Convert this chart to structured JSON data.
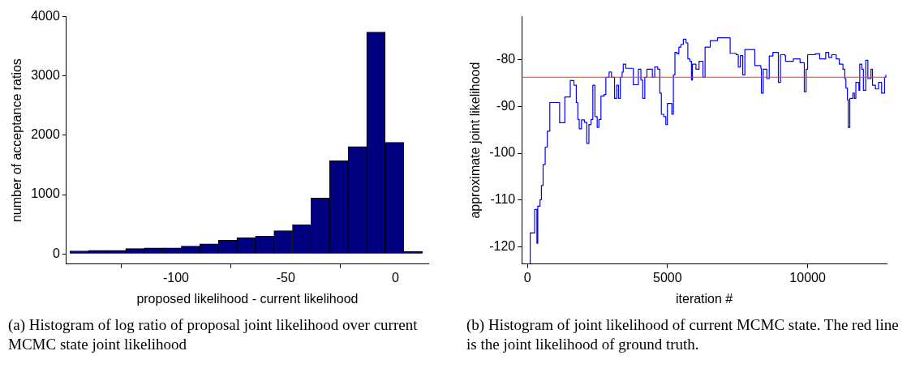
{
  "chart_data": [
    {
      "type": "histogram",
      "xlabel": "proposed likelihood - current likelihood",
      "ylabel": "number of acceptance ratios",
      "annotations": [
        "(a) Histogram of log ratio of proposal joint likelihood over current MCMC state joint likelihood"
      ],
      "bins": [
        -148.3,
        -139.9,
        -131.4,
        -123,
        -114.5,
        -106.1,
        -97.6,
        -89.2,
        -80.7,
        -72.3,
        -63.8,
        -55.4,
        -46.9,
        -38.5,
        -30,
        -21.6,
        -13.1,
        -4.7,
        3.8,
        12.3
      ],
      "values": [
        50,
        60,
        60,
        90,
        100,
        100,
        130,
        170,
        230,
        270,
        300,
        390,
        490,
        940,
        1570,
        1810,
        3740,
        1880,
        40
      ],
      "color": "#000080",
      "xlim": [
        -150,
        15
      ],
      "ylim": [
        -170,
        4000
      ],
      "xticks": [
        -100,
        -50,
        0
      ],
      "yticks": [
        0,
        1000,
        2000,
        3000,
        4000
      ],
      "grid": false
    },
    {
      "type": "step",
      "xlabel": "iteration #",
      "ylabel": "approximate joint likelihood",
      "annotations": [
        "(b) Histogram of joint likelihood of current MCMC state. The red line is the joint likelihood of ground truth."
      ],
      "xlim": [
        -200,
        12820
      ],
      "ylim": [
        -123.6,
        -70.9
      ],
      "xticks": [
        0,
        5000,
        10000
      ],
      "yticks": [
        -120,
        -110,
        -100,
        -90,
        -80
      ],
      "grid": false,
      "ref_lines": [
        {
          "axis": "y",
          "value": -83.8,
          "color": "#ff3030"
        }
      ],
      "series": [
        {
          "color": "#0000ff",
          "x": [
            0,
            100,
            260,
            260,
            340,
            370,
            450,
            500,
            560,
            635,
            710,
            800,
            1150,
            1150,
            1280,
            1335,
            1475,
            1530,
            1660,
            1745,
            1800,
            1850,
            1930,
            2035,
            2120,
            2195,
            2270,
            2335,
            2410,
            2490,
            2550,
            2625,
            2735,
            2800,
            2900,
            2915,
            3000,
            3110,
            3185,
            3250,
            3315,
            3380,
            3420,
            3510,
            3770,
            3780,
            3920,
            3960,
            4050,
            4115,
            4190,
            4265,
            4405,
            4460,
            4545,
            4650,
            4725,
            4780,
            4865,
            4940,
            4995,
            5120,
            5155,
            5210,
            5265,
            5340,
            5405,
            5480,
            5565,
            5660,
            5725,
            5800,
            5855,
            5890,
            6015,
            6125,
            6265,
            6340,
            6450,
            6525,
            6785,
            7225,
            7235,
            7450,
            7525,
            7600,
            7685,
            7760,
            8095,
            8115,
            8330,
            8350,
            8415,
            8545,
            8630,
            8760,
            8890,
            8955,
            9030,
            9190,
            9210,
            9460,
            9490,
            9675,
            9730,
            9835,
            9880,
            9945,
            10000,
            10270,
            10430,
            10645,
            10755,
            10860,
            11020,
            11130,
            11260,
            11325,
            11365,
            11420,
            11450,
            11505,
            11615,
            11670,
            11720,
            11830,
            11860,
            11935,
            11990,
            12075,
            12150,
            12260,
            12315,
            12420,
            12530,
            12640,
            12745,
            12790
          ],
          "values": [
            -123.6,
            -117,
            -115.3,
            -112,
            -119.2,
            -111.3,
            -109.9,
            -106.9,
            -102.4,
            -98.7,
            -95.3,
            -89.2,
            -89.2,
            -93.5,
            -93.5,
            -88,
            -88,
            -84.5,
            -85.5,
            -89.2,
            -92.8,
            -94.8,
            -92.9,
            -93.4,
            -97.9,
            -93.9,
            -92.8,
            -85.5,
            -92.2,
            -94.5,
            -92.8,
            -87.8,
            -87.5,
            -83.8,
            -83.8,
            -82.7,
            -83.8,
            -88.3,
            -85.5,
            -88.3,
            -83.8,
            -82.7,
            -81,
            -81.9,
            -81.9,
            -85.4,
            -85.4,
            -82.1,
            -84.4,
            -88.3,
            -83.8,
            -82.1,
            -82.1,
            -83.8,
            -81.6,
            -82.1,
            -87.2,
            -91.7,
            -92.2,
            -93.9,
            -89.4,
            -89.4,
            -91.7,
            -83.3,
            -78.5,
            -78.8,
            -77.4,
            -76.8,
            -75.7,
            -76.5,
            -79.9,
            -80.4,
            -84.4,
            -81,
            -82.1,
            -80.4,
            -83.8,
            -77.4,
            -77.4,
            -76,
            -75.4,
            -75.4,
            -78.7,
            -79,
            -81.6,
            -79.2,
            -83.3,
            -77.9,
            -77.9,
            -81.3,
            -81.9,
            -87.2,
            -82.1,
            -84.1,
            -79.3,
            -78.5,
            -78.5,
            -84.9,
            -79,
            -79.2,
            -80.4,
            -80.4,
            -79.9,
            -79.9,
            -80.7,
            -80.7,
            -86.9,
            -82.1,
            -79,
            -78.8,
            -79.9,
            -78.5,
            -79.6,
            -79,
            -79.9,
            -81,
            -82.1,
            -84.1,
            -86.1,
            -88.6,
            -94.5,
            -88.3,
            -87.2,
            -88.3,
            -84.9,
            -86.6,
            -81,
            -82.1,
            -86.6,
            -80.2,
            -84.1,
            -82.1,
            -85.5,
            -86.3,
            -84.9,
            -87.2,
            -83.8,
            -83.3
          ]
        }
      ]
    }
  ]
}
